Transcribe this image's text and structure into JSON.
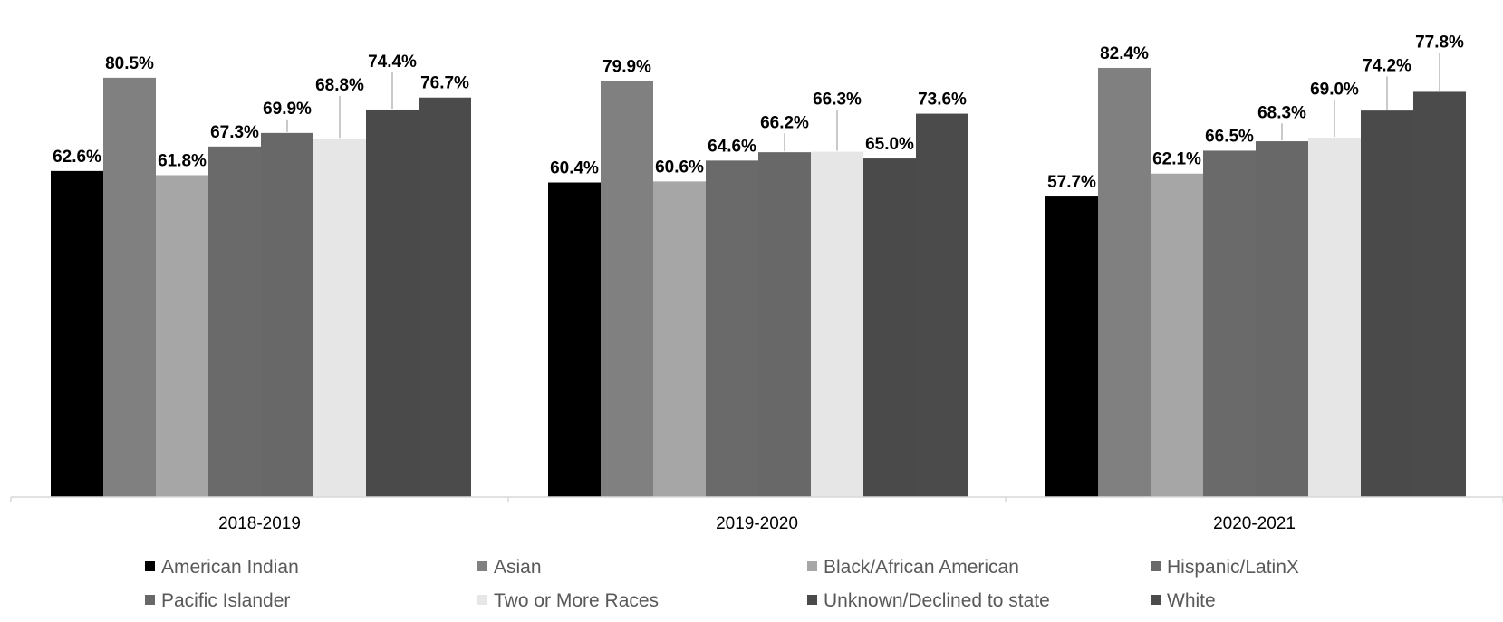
{
  "chart_data": {
    "type": "bar",
    "categories": [
      "2018-2019",
      "2019-2020",
      "2020-2021"
    ],
    "ylim": [
      0,
      100
    ],
    "grid": false,
    "legend_position": "bottom",
    "value_format": "percent_one_decimal",
    "series": [
      {
        "name": "American Indian",
        "color": "#000000",
        "values": [
          62.6,
          60.4,
          57.7
        ]
      },
      {
        "name": "Asian",
        "color": "#808080",
        "values": [
          80.5,
          79.9,
          82.4
        ]
      },
      {
        "name": "Black/African American",
        "color": "#a6a6a6",
        "values": [
          61.8,
          60.6,
          62.1
        ]
      },
      {
        "name": "Hispanic/LatinX",
        "color": "#6a6a6a",
        "values": [
          67.3,
          64.6,
          66.5
        ]
      },
      {
        "name": "Pacific Islander",
        "color": "#686868",
        "values": [
          69.9,
          66.2,
          68.3
        ]
      },
      {
        "name": "Two or More Races",
        "color": "#e6e6e6",
        "values": [
          68.8,
          66.3,
          69.0
        ]
      },
      {
        "name": "Unknown/Declined to state",
        "color": "#4a4a4a",
        "values": [
          74.4,
          65.0,
          74.2
        ]
      },
      {
        "name": "White",
        "color": "#4b4b4b",
        "values": [
          76.7,
          73.6,
          77.8
        ]
      }
    ]
  }
}
